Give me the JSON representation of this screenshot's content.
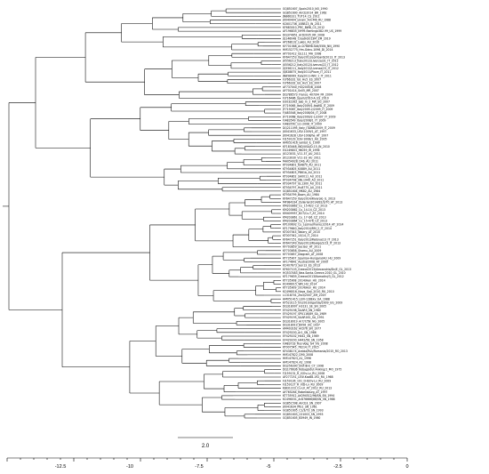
{
  "tree": {
    "tips": [
      "GQ851607_Spain2010_NO_1990",
      "GQ851600_AnCb2014_BR_1962",
      "JN866331_TUT14_CS_2011",
      "JX040404_ukrain_Am-M6_RU_1988",
      "KC601736_10BB13_IN_2011",
      "KF683010_PRC_BWB_CS_2012",
      "AF196835_NY99-flamingo382-99_US_1999",
      "DQ374651_ArD2035_KR_2008",
      "JQ146048_CroatH2013M_ZM_2019",
      "AY268132_Lakos_AU_2010",
      "KY701588_Ar-D76898-TA6/55IN_NN_1990",
      "HM152775_Hm-Gdnu-1096_DI_2014",
      "AY701412_ISL111_MA_1998",
      "KF647253_Italy2013/Lombardi/2013_IT_2013",
      "JX556213_Italy2012/Livenza/31_IT_2012",
      "JX556212_Italy2012/Livenza/22_IT_2012",
      "JQ556211_Italy2012/Livenza/23_IT_2012",
      "JQ828875_Italy2011/Piave_IT_2011",
      "JN858069_Italy2011-WN_1_IT_2011",
      "FJ766331_GE_Hu5_ES_2007",
      "FJ766332_GE_Hu5_ES_2007",
      "AF737040_HU/2005/B_2008",
      "AY701414_Sn05_MR_2007",
      "DQ786573_France_407/04_FR_2004",
      "FJ716486_Spain/2010-A_ES_2010",
      "EU032263_Sab_In_2_MA_SG_2007",
      "JF719065_Italy2009/1-ItaWD_IT_2009",
      "JF719067_Italy2009-2/2009_IT_2009",
      "FJ483548_Italy2008/04_IT_2008",
      "JF719068_Italy2009/2-1/2007_IT_2009",
      "FJ483549_Italy/2008/1_IT_2009",
      "FJ483550_1/1-2008_IT_2009",
      "DQ211095_Italy_ITAWB/2009_IT_2009",
      "JX041633_USV-1009/1_AT_1997",
      "JX041628_USV-1008/ha_AT_1997",
      "FJ159129_USV-1008/1_AU_2005",
      "HM051416_lambd_IL_1999",
      "KF183448_IND/USA/D-15_IN_2010",
      "EU249803_96059_IR_1996",
      "JX123031_V11-37_AU_2011",
      "JX123030_V11-33_AU_2011",
      "MH054928_D4b_AU_2011",
      "KT934801_KJ4870_AU_2011",
      "KT934805_K0889_AU_2011",
      "KT934803_PB61b_AU_2011",
      "KT934802_SA0011_AU_2011",
      "KT934798_SNL1949_AU_2011",
      "KT934797_GL1300_AU_2011",
      "KT934797_Hu8775_AU_2011",
      "GQ851604_MK82_AU_1984",
      "KT934799_Bawn_AU_1984",
      "KF647259_Italy2014/Rivarolo_IL_2013",
      "MF984334_Zeliarian2014/B2/3/70_AT_2013",
      "KM203863_Cu_15-R22_CZ_2013",
      "KM203862_Cu_14-14_CZ_2013",
      "KM409957_B27/Cu-T_AT_2014",
      "KM203861_Cu_17-Q6_CZ_2013",
      "KM203864_Cu_15-476_CZ_2013",
      "KP109692_Cu_Lesina/Vranec/2014_AT_2014",
      "KF179640_Italy2014/RM_2_IT_2014",
      "KT007543_Tabary_AT_2015",
      "KT007542_10/14_IT_2014",
      "KF647251_Italy2013/Padova/13_IT_2013",
      "KF647249_Italy2013/Rovigo/2/13_IT_2013",
      "KF703859_Saciser_AT_2011",
      "KF703658_Shamu_AU_2009",
      "KF703657_Diagram_AT_2008",
      "KT735907_Sparrow-Hungary/HU_HU_2009",
      "AF174641_Austral2008_AT_2009",
      "KC407673_Sen13_ES_2013",
      "KF607103_Greece2013/Alexandria/Dv/E_GL_2013",
      "HQ537483_Nea-Santa-Greece-2010_GL_2010",
      "KF179639_Greece2013/Komotini/3_GL_2012",
      "KT735908_2014/Han_HU_2014",
      "KC496015_WN_HU_2014",
      "KT735909_2014/Hun_HU_2014",
      "KC496016_Nova_Gaji_2010_RU_2010",
      "LC318701_Zw3/2007_ZM_2019",
      "HM051415_LEIV-128Ekv_UA_1988",
      "KY523115_UG2010/Uganda/2009_UG_2009",
      "DQ318007_H3131_SE_SN_2005",
      "EF429198_SAAR5_SN_1980",
      "EF429197_SPU116/89_SA_1989",
      "EF429195_SAAR161_SA_1991",
      "DQ318019_Ar7/7/58_NG_2005",
      "DQ318019_B956_UG_1937",
      "AM403162_ArD76_SN_1977",
      "EF429200_Ar1_SN_1986",
      "EF429202_H442_SN_1989",
      "EF429200_H442/58_SN_1958",
      "FJ483733_Rus-Volg_G4_VG_2008",
      "KT007545_76214_IT_2015",
      "KF438174_Arabia/Rus/Romania/2015_RO_2013",
      "HM147822_D90_2008",
      "HM147823_A1_1996",
      "HM147824_A2_1998",
      "DQ256390_DGT/B-E_CY_1998",
      "DQ176636_Nsbagsidut-Anking/1_MO_1975",
      "FJ159131_R_V/Ov-Lv_RU_2008",
      "AY277251_LEIV-Kaz88-192_RU_1968",
      "FJ159126_101_D-6/Ov-Lv_RU_2009",
      "FJ159127_R_V/D-Lv_RU_2009",
      "KJ831223_Cu-LV_AT_2012_RU_2013",
      "AY765264_Rabensburg_AT_1997",
      "KT735912_ArD94512/96/SN_SN_1994",
      "KC496031_ArD76666/88/SN_SN_1988",
      "GQ851598_AnCb3_SN_2007",
      "JX041634_MG1_SN_1961",
      "GQ851605_C1/3/73_SN_1993",
      "GQ851603_C01003_SN_1993",
      "GQ851605_B3949_IN_1980"
    ]
  },
  "scale_bar": {
    "label": "2.0"
  },
  "axis": {
    "ticks": [
      "-12.5",
      "-10",
      "-7.5",
      "-5",
      "-2.5",
      "0"
    ]
  }
}
